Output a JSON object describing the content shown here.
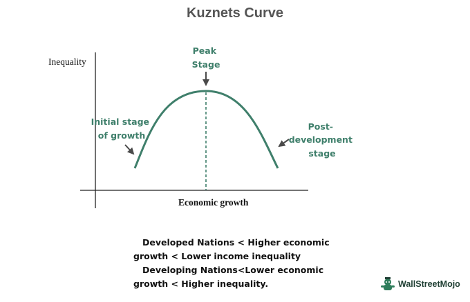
{
  "title": "Kuznets Curve",
  "y_axis_label": "Inequality",
  "x_axis_label": "Economic growth",
  "labels": {
    "peak": [
      "Peak",
      "Stage"
    ],
    "initial": [
      "Initial stage",
      "of growth"
    ],
    "post": [
      "Post-",
      "development",
      "stage"
    ]
  },
  "notes": [
    "Developed Nations < Higher economic",
    "growth < Lower income inequality",
    "Developing Nations<Lower economic",
    "growth < Higher inequality."
  ],
  "brand": "WallStreetMojo",
  "colors": {
    "curve": "#3f7f6b",
    "arrows": "#4a4a4a",
    "axes": "#222222",
    "brand": "#2e7d5b"
  }
}
